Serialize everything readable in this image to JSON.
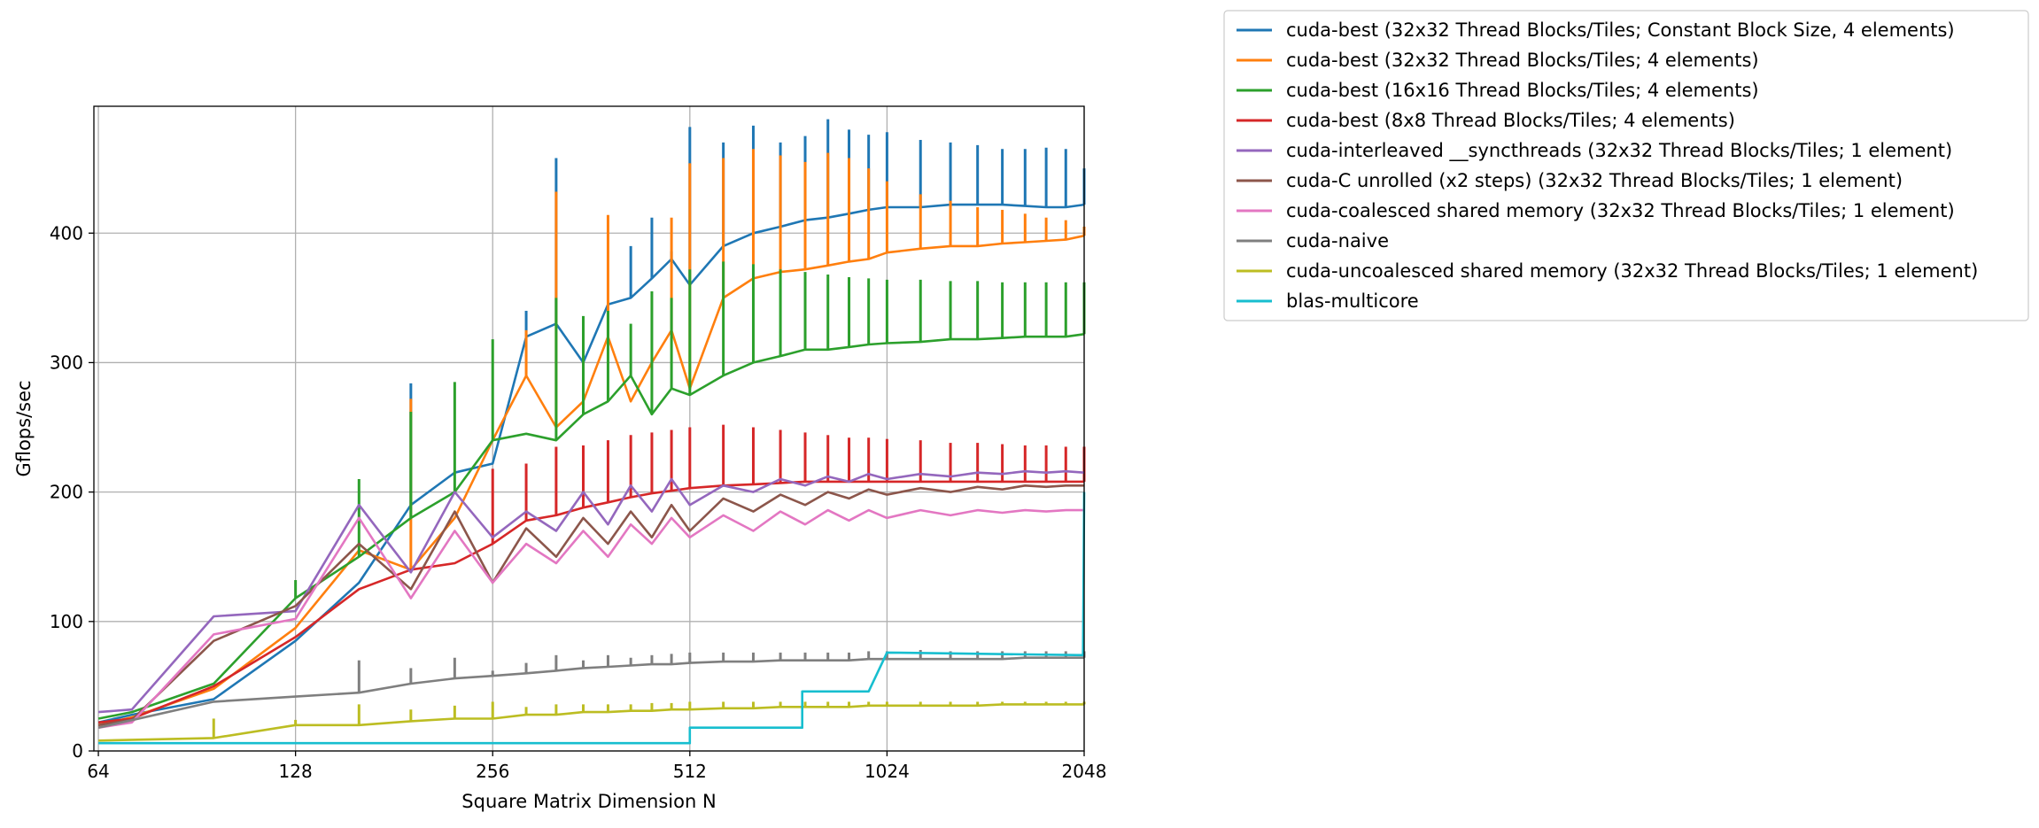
{
  "chart_data": {
    "type": "line",
    "title": "",
    "xlabel": "Square Matrix Dimension N",
    "ylabel": "Gflops/sec",
    "xscale": "log2",
    "xlim": [
      63,
      2048
    ],
    "ylim": [
      0,
      498
    ],
    "xticks": [
      64,
      128,
      256,
      512,
      1024,
      2048
    ],
    "xtick_labels": [
      "64",
      "128",
      "256",
      "512",
      "1024",
      "2048"
    ],
    "yticks": [
      0,
      100,
      200,
      300,
      400
    ],
    "ytick_labels": [
      "0",
      "100",
      "200",
      "300",
      "400"
    ],
    "grid": true,
    "legend_position": "outside upper right",
    "series": [
      {
        "name": "cuda-best (32x32 Thread Blocks/Tiles; Constant Block Size, 4 elements)",
        "color": "#1f77b4",
        "x": [
          64,
          72,
          96,
          128,
          160,
          192,
          224,
          256,
          288,
          320,
          352,
          384,
          416,
          448,
          480,
          512,
          576,
          640,
          704,
          768,
          832,
          896,
          960,
          1024,
          1152,
          1280,
          1408,
          1536,
          1664,
          1792,
          1920,
          2048
        ],
        "y": [
          22,
          28,
          40,
          85,
          130,
          190,
          215,
          222,
          320,
          330,
          300,
          345,
          350,
          365,
          380,
          360,
          390,
          400,
          405,
          410,
          412,
          415,
          418,
          420,
          420,
          422,
          422,
          422,
          421,
          420,
          420,
          422
        ],
        "spikes": [
          null,
          null,
          null,
          null,
          null,
          284,
          null,
          null,
          340,
          458,
          null,
          null,
          390,
          412,
          386,
          482,
          470,
          483,
          470,
          475,
          488,
          480,
          476,
          478,
          472,
          470,
          468,
          465,
          465,
          466,
          465,
          450
        ]
      },
      {
        "name": "cuda-best (32x32 Thread Blocks/Tiles; 4 elements)",
        "color": "#ff7f0e",
        "x": [
          64,
          72,
          96,
          128,
          160,
          192,
          224,
          256,
          288,
          320,
          352,
          384,
          416,
          448,
          480,
          512,
          576,
          640,
          704,
          768,
          832,
          896,
          960,
          1024,
          1152,
          1280,
          1408,
          1536,
          1664,
          1792,
          1920,
          2048
        ],
        "y": [
          20,
          26,
          48,
          95,
          155,
          140,
          180,
          240,
          290,
          250,
          270,
          320,
          270,
          300,
          325,
          280,
          350,
          365,
          370,
          372,
          375,
          378,
          380,
          385,
          388,
          390,
          390,
          392,
          393,
          394,
          395,
          398
        ],
        "spikes": [
          null,
          null,
          null,
          null,
          null,
          272,
          null,
          null,
          325,
          432,
          null,
          414,
          null,
          null,
          412,
          454,
          458,
          465,
          460,
          455,
          462,
          458,
          450,
          440,
          430,
          425,
          420,
          418,
          415,
          412,
          410,
          405
        ]
      },
      {
        "name": "cuda-best (16x16 Thread Blocks/Tiles; 4 elements)",
        "color": "#2ca02c",
        "x": [
          64,
          72,
          96,
          128,
          160,
          192,
          224,
          256,
          288,
          320,
          352,
          384,
          416,
          448,
          480,
          512,
          576,
          640,
          704,
          768,
          832,
          896,
          960,
          1024,
          1152,
          1280,
          1408,
          1536,
          1664,
          1792,
          1920,
          2048
        ],
        "y": [
          25,
          30,
          52,
          118,
          150,
          180,
          200,
          240,
          245,
          240,
          260,
          270,
          290,
          260,
          280,
          275,
          290,
          300,
          305,
          310,
          310,
          312,
          314,
          315,
          316,
          318,
          318,
          319,
          320,
          320,
          320,
          322
        ],
        "spikes": [
          null,
          null,
          null,
          132,
          210,
          262,
          285,
          318,
          null,
          350,
          336,
          340,
          330,
          355,
          350,
          372,
          378,
          376,
          372,
          370,
          368,
          366,
          365,
          364,
          364,
          363,
          363,
          362,
          362,
          362,
          362,
          362
        ]
      },
      {
        "name": "cuda-best (8x8 Thread Blocks/Tiles; 4 elements)",
        "color": "#d62728",
        "x": [
          64,
          72,
          96,
          128,
          160,
          192,
          224,
          256,
          288,
          320,
          352,
          384,
          416,
          448,
          480,
          512,
          576,
          640,
          704,
          768,
          832,
          896,
          960,
          1024,
          1152,
          1280,
          1408,
          1536,
          1664,
          1792,
          1920,
          2048
        ],
        "y": [
          22,
          25,
          50,
          88,
          125,
          140,
          145,
          160,
          178,
          182,
          188,
          192,
          196,
          199,
          201,
          203,
          205,
          206,
          207,
          208,
          208,
          208,
          208,
          208,
          208,
          208,
          208,
          208,
          208,
          208,
          208,
          208
        ],
        "spikes": [
          null,
          null,
          null,
          null,
          null,
          null,
          null,
          218,
          222,
          235,
          236,
          240,
          244,
          246,
          248,
          250,
          252,
          250,
          248,
          246,
          244,
          242,
          242,
          241,
          240,
          238,
          238,
          237,
          236,
          236,
          235,
          235
        ]
      },
      {
        "name": "cuda-interleaved __syncthreads (32x32 Thread Blocks/Tiles; 1 element)",
        "color": "#9467bd",
        "x": [
          64,
          72,
          96,
          128,
          160,
          192,
          224,
          256,
          288,
          320,
          352,
          384,
          416,
          448,
          480,
          512,
          576,
          640,
          704,
          768,
          832,
          896,
          960,
          1024,
          1152,
          1280,
          1408,
          1536,
          1664,
          1792,
          1920,
          2048
        ],
        "y": [
          30,
          32,
          104,
          108,
          190,
          138,
          200,
          165,
          185,
          170,
          200,
          175,
          205,
          185,
          210,
          190,
          205,
          200,
          210,
          205,
          212,
          208,
          214,
          210,
          214,
          212,
          215,
          214,
          216,
          215,
          216,
          215
        ]
      },
      {
        "name": "cuda-C unrolled (x2 steps) (32x32 Thread Blocks/Tiles; 1 element)",
        "color": "#8c564b",
        "x": [
          64,
          72,
          96,
          128,
          160,
          192,
          224,
          256,
          288,
          320,
          352,
          384,
          416,
          448,
          480,
          512,
          576,
          640,
          704,
          768,
          832,
          896,
          960,
          1024,
          1152,
          1280,
          1408,
          1536,
          1664,
          1792,
          1920,
          2048
        ],
        "y": [
          20,
          24,
          85,
          112,
          160,
          125,
          185,
          130,
          172,
          150,
          180,
          160,
          185,
          165,
          190,
          170,
          195,
          185,
          198,
          190,
          200,
          195,
          202,
          198,
          203,
          200,
          204,
          202,
          205,
          204,
          205,
          205
        ]
      },
      {
        "name": "cuda-coalesced shared memory (32x32 Thread Blocks/Tiles; 1 element)",
        "color": "#e377c2",
        "x": [
          64,
          72,
          96,
          128,
          160,
          192,
          224,
          256,
          288,
          320,
          352,
          384,
          416,
          448,
          480,
          512,
          576,
          640,
          704,
          768,
          832,
          896,
          960,
          1024,
          1152,
          1280,
          1408,
          1536,
          1664,
          1792,
          1920,
          2048
        ],
        "y": [
          18,
          22,
          90,
          102,
          180,
          118,
          170,
          130,
          160,
          145,
          170,
          150,
          175,
          160,
          180,
          165,
          182,
          170,
          185,
          175,
          186,
          178,
          186,
          180,
          186,
          182,
          186,
          184,
          186,
          185,
          186,
          186
        ]
      },
      {
        "name": "cuda-naive",
        "color": "#7f7f7f",
        "x": [
          64,
          96,
          128,
          160,
          192,
          224,
          256,
          288,
          320,
          352,
          384,
          416,
          448,
          480,
          512,
          576,
          640,
          704,
          768,
          832,
          896,
          960,
          1024,
          1152,
          1280,
          1408,
          1536,
          1664,
          1792,
          1920,
          2048
        ],
        "y": [
          18,
          38,
          42,
          45,
          52,
          56,
          58,
          60,
          62,
          64,
          65,
          66,
          67,
          67,
          68,
          69,
          69,
          70,
          70,
          70,
          70,
          71,
          71,
          71,
          71,
          71,
          71,
          72,
          72,
          72,
          72
        ],
        "spikes": [
          null,
          null,
          null,
          70,
          64,
          72,
          62,
          68,
          74,
          70,
          74,
          72,
          74,
          75,
          76,
          76,
          76,
          76,
          76,
          76,
          76,
          77,
          77,
          78,
          77,
          77,
          77,
          77,
          77,
          77,
          77
        ]
      },
      {
        "name": "cuda-uncoalesced shared memory (32x32 Thread Blocks/Tiles; 1 element)",
        "color": "#bcbd22",
        "x": [
          64,
          96,
          128,
          160,
          192,
          224,
          256,
          288,
          320,
          352,
          384,
          416,
          448,
          480,
          512,
          576,
          640,
          704,
          768,
          832,
          896,
          960,
          1024,
          1152,
          1280,
          1408,
          1536,
          1664,
          1792,
          1920,
          2048
        ],
        "y": [
          8,
          10,
          20,
          20,
          23,
          25,
          25,
          28,
          28,
          30,
          30,
          31,
          31,
          32,
          32,
          33,
          33,
          34,
          34,
          34,
          34,
          35,
          35,
          35,
          35,
          35,
          36,
          36,
          36,
          36,
          36
        ],
        "spikes": [
          null,
          25,
          24,
          36,
          32,
          35,
          38,
          34,
          36,
          36,
          36,
          36,
          37,
          37,
          38,
          38,
          38,
          38,
          38,
          38,
          38,
          38,
          38,
          38,
          38,
          38,
          38,
          38,
          38,
          38,
          38
        ]
      },
      {
        "name": "blas-multicore",
        "color": "#17becf",
        "x": [
          64,
          512,
          512,
          760,
          760,
          960,
          1024,
          2040,
          2048
        ],
        "y": [
          6,
          6,
          18,
          18,
          46,
          46,
          76,
          74,
          200
        ]
      }
    ]
  }
}
